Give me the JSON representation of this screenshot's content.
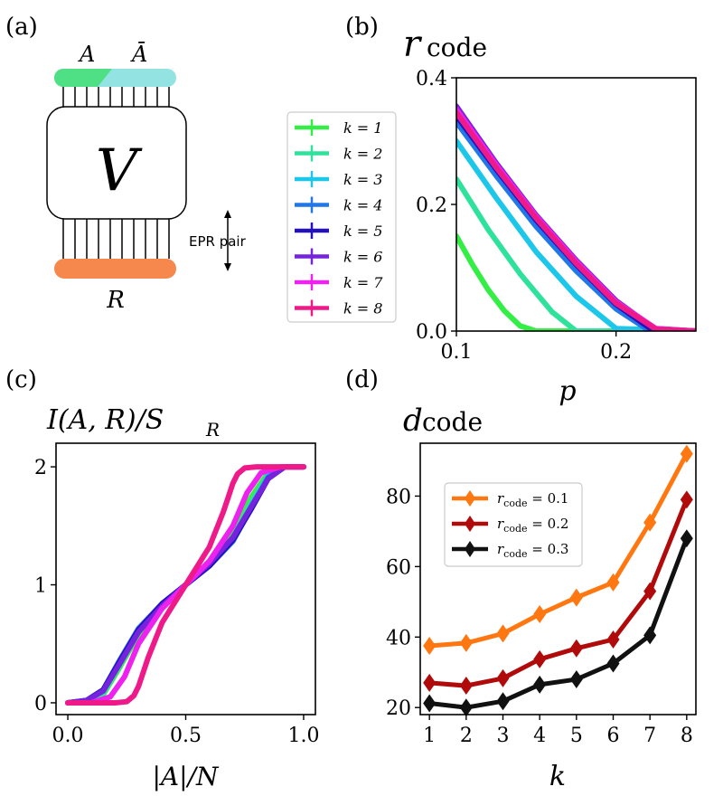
{
  "panels": {
    "a": {
      "label": "(a)",
      "top_label_A": "A",
      "top_label_Abar": "Ā",
      "center_label": "V",
      "bottom_label": "R",
      "epr_label": "EPR pair",
      "colors": {
        "A": "#4fdf84",
        "Abar": "#94e3e3",
        "R": "#f6884d"
      }
    },
    "b": {
      "label": "(b)",
      "title_main": "r",
      "title_sub": "code",
      "xlabel": "p"
    },
    "c": {
      "label": "(c)",
      "title": "I(A, R)/S",
      "title_sub": "R",
      "xlabel": "|A|/N"
    },
    "d": {
      "label": "(d)",
      "title_main": "d",
      "title_sub": "code",
      "xlabel": "k"
    }
  },
  "legend_k": [
    {
      "text": "k = 1",
      "color": "#33ee44"
    },
    {
      "text": "k = 2",
      "color": "#2fe29c"
    },
    {
      "text": "k = 3",
      "color": "#1cc7ea"
    },
    {
      "text": "k = 4",
      "color": "#2277e6"
    },
    {
      "text": "k = 5",
      "color": "#2311bf"
    },
    {
      "text": "k = 6",
      "color": "#7722dd"
    },
    {
      "text": "k = 7",
      "color": "#ee22ee"
    },
    {
      "text": "k = 8",
      "color": "#ef1a8a"
    }
  ],
  "chart_data": [
    {
      "id": "b",
      "type": "line",
      "title": "r_code",
      "xlabel": "p",
      "ylabel": "",
      "xlim": [
        0.1,
        0.25
      ],
      "ylim": [
        0.0,
        0.4
      ],
      "xticks": [
        "0.1",
        "0.2"
      ],
      "yticks": [
        "0.0",
        "0.2",
        "0.4"
      ],
      "series": [
        {
          "name": "k = 1",
          "color": "#33ee44",
          "x": [
            0.1,
            0.11,
            0.12,
            0.13,
            0.14,
            0.15,
            0.25
          ],
          "y": [
            0.15,
            0.105,
            0.065,
            0.032,
            0.008,
            0.0,
            0.0
          ]
        },
        {
          "name": "k = 2",
          "color": "#2fe29c",
          "x": [
            0.1,
            0.12,
            0.14,
            0.16,
            0.175,
            0.25
          ],
          "y": [
            0.24,
            0.16,
            0.09,
            0.03,
            0.0,
            0.0
          ]
        },
        {
          "name": "k = 3",
          "color": "#1cc7ea",
          "x": [
            0.1,
            0.125,
            0.15,
            0.175,
            0.2,
            0.25
          ],
          "y": [
            0.3,
            0.21,
            0.125,
            0.055,
            0.004,
            0.0
          ]
        },
        {
          "name": "k = 4",
          "color": "#2277e6",
          "x": [
            0.1,
            0.125,
            0.15,
            0.175,
            0.2,
            0.22,
            0.25
          ],
          "y": [
            0.33,
            0.245,
            0.165,
            0.095,
            0.035,
            0.002,
            0.0
          ]
        },
        {
          "name": "k = 5",
          "color": "#2311bf",
          "x": [
            0.1,
            0.125,
            0.15,
            0.175,
            0.2,
            0.222,
            0.25
          ],
          "y": [
            0.34,
            0.255,
            0.175,
            0.105,
            0.042,
            0.003,
            0.0
          ]
        },
        {
          "name": "k = 6",
          "color": "#7722dd",
          "x": [
            0.1,
            0.125,
            0.15,
            0.175,
            0.2,
            0.224,
            0.25
          ],
          "y": [
            0.355,
            0.265,
            0.183,
            0.112,
            0.048,
            0.004,
            0.0
          ]
        },
        {
          "name": "k = 7",
          "color": "#ee22ee",
          "x": [
            0.1,
            0.125,
            0.15,
            0.175,
            0.2,
            0.225,
            0.25
          ],
          "y": [
            0.35,
            0.262,
            0.181,
            0.11,
            0.046,
            0.004,
            0.0
          ]
        },
        {
          "name": "k = 8",
          "color": "#ef1a8a",
          "x": [
            0.1,
            0.125,
            0.15,
            0.175,
            0.2,
            0.225,
            0.25
          ],
          "y": [
            0.345,
            0.258,
            0.178,
            0.107,
            0.044,
            0.003,
            0.0
          ]
        }
      ]
    },
    {
      "id": "c",
      "type": "line",
      "title": "I(A,R)/S_R",
      "xlabel": "|A|/N",
      "ylabel": "",
      "xlim": [
        -0.05,
        1.05
      ],
      "ylim": [
        -0.1,
        2.2
      ],
      "xticks": [
        "0.0",
        "0.5",
        "1.0"
      ],
      "yticks": [
        "0",
        "1",
        "2"
      ],
      "series": [
        {
          "name": "k = 1",
          "color": "#33ee44",
          "x": [
            0,
            0.08,
            0.15,
            0.22,
            0.3,
            0.4,
            0.5,
            0.6,
            0.7,
            0.78,
            0.85,
            0.92,
            1.0
          ],
          "y": [
            0,
            0.0,
            0.07,
            0.3,
            0.58,
            0.82,
            1.0,
            1.18,
            1.45,
            1.75,
            1.95,
            2.0,
            2.0
          ]
        },
        {
          "name": "k = 2",
          "color": "#2fe29c",
          "x": [
            0,
            0.08,
            0.15,
            0.22,
            0.3,
            0.4,
            0.5,
            0.6,
            0.7,
            0.78,
            0.85,
            0.92,
            1.0
          ],
          "y": [
            0,
            0.01,
            0.08,
            0.32,
            0.6,
            0.83,
            1.0,
            1.17,
            1.4,
            1.7,
            1.93,
            2.0,
            2.0
          ]
        },
        {
          "name": "k = 3",
          "color": "#1cc7ea",
          "x": [
            0,
            0.08,
            0.15,
            0.22,
            0.3,
            0.4,
            0.5,
            0.6,
            0.7,
            0.78,
            0.85,
            0.92,
            1.0
          ],
          "y": [
            0,
            0.02,
            0.1,
            0.34,
            0.62,
            0.84,
            1.0,
            1.16,
            1.38,
            1.68,
            1.92,
            2.0,
            2.0
          ]
        },
        {
          "name": "k = 4",
          "color": "#2277e6",
          "x": [
            0,
            0.08,
            0.15,
            0.22,
            0.3,
            0.4,
            0.5,
            0.6,
            0.7,
            0.78,
            0.85,
            0.92,
            1.0
          ],
          "y": [
            0,
            0.02,
            0.11,
            0.36,
            0.63,
            0.84,
            1.0,
            1.16,
            1.37,
            1.66,
            1.91,
            2.0,
            2.0
          ]
        },
        {
          "name": "k = 5",
          "color": "#2311bf",
          "x": [
            0,
            0.08,
            0.15,
            0.22,
            0.3,
            0.4,
            0.5,
            0.6,
            0.7,
            0.78,
            0.85,
            0.92,
            1.0
          ],
          "y": [
            0,
            0.02,
            0.11,
            0.35,
            0.62,
            0.84,
            1.0,
            1.16,
            1.38,
            1.65,
            1.9,
            2.0,
            2.0
          ]
        },
        {
          "name": "k = 6",
          "color": "#7722dd",
          "x": [
            0,
            0.08,
            0.15,
            0.22,
            0.3,
            0.4,
            0.5,
            0.6,
            0.7,
            0.78,
            0.85,
            0.92,
            1.0
          ],
          "y": [
            0,
            0.02,
            0.1,
            0.33,
            0.6,
            0.82,
            1.0,
            1.18,
            1.4,
            1.67,
            1.9,
            2.0,
            2.0
          ]
        },
        {
          "name": "k = 7",
          "color": "#ee22ee",
          "x": [
            0,
            0.1,
            0.18,
            0.24,
            0.3,
            0.4,
            0.5,
            0.6,
            0.7,
            0.76,
            0.82,
            0.9,
            1.0
          ],
          "y": [
            0,
            0.0,
            0.05,
            0.22,
            0.5,
            0.8,
            1.0,
            1.2,
            1.5,
            1.78,
            1.95,
            2.0,
            2.0
          ]
        },
        {
          "name": "k = 8",
          "color": "#ef1a8a",
          "x": [
            0,
            0.2,
            0.25,
            0.28,
            0.3,
            0.34,
            0.4,
            0.5,
            0.6,
            0.66,
            0.7,
            0.72,
            0.75,
            0.8,
            1.0
          ],
          "y": [
            0,
            0.0,
            0.01,
            0.06,
            0.14,
            0.38,
            0.68,
            1.0,
            1.32,
            1.62,
            1.86,
            1.94,
            1.99,
            2.0,
            2.0
          ]
        }
      ]
    },
    {
      "id": "d",
      "type": "line",
      "title": "d_code",
      "xlabel": "k",
      "ylabel": "",
      "xlim": [
        0.75,
        8.25
      ],
      "ylim": [
        18,
        95
      ],
      "categories": [
        "1",
        "2",
        "3",
        "4",
        "5",
        "6",
        "7",
        "8"
      ],
      "yticks": [
        "20",
        "40",
        "60",
        "80"
      ],
      "legend": [
        "r_code = 0.1",
        "r_code = 0.2",
        "r_code = 0.3"
      ],
      "series": [
        {
          "name": "r_code = 0.1",
          "color": "#ff7711",
          "values": [
            37.5,
            38.3,
            41.0,
            46.5,
            51.2,
            55.5,
            72.5,
            92.0
          ]
        },
        {
          "name": "r_code = 0.2",
          "color": "#b00a0a",
          "values": [
            27.0,
            26.2,
            28.3,
            33.7,
            36.8,
            39.3,
            53.0,
            79.0
          ]
        },
        {
          "name": "r_code = 0.3",
          "color": "#111111",
          "values": [
            21.2,
            20.0,
            21.8,
            26.5,
            28.0,
            32.5,
            40.5,
            68.0
          ]
        }
      ],
      "legend_items": [
        {
          "main": "r",
          "sub": "code",
          "rest": " = 0.1"
        },
        {
          "main": "r",
          "sub": "code",
          "rest": " = 0.2"
        },
        {
          "main": "r",
          "sub": "code",
          "rest": " = 0.3"
        }
      ]
    }
  ]
}
